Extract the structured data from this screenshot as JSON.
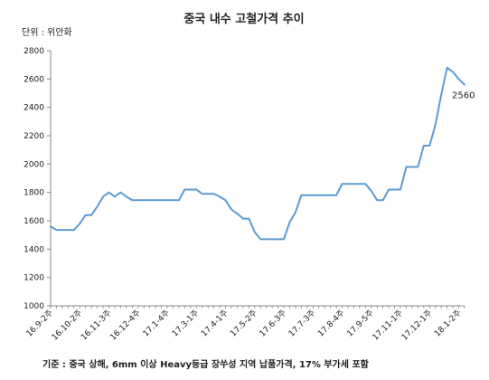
{
  "chart_data": {
    "type": "line",
    "title": "중국 내수 고철가격 추이",
    "unit_label": "단위 : 위안화",
    "footnote": "기준 : 중국 상해, 6mm 이상 Heavy등급 장쑤성 지역 납품가격, 17% 부가세 포함",
    "ylim": [
      1000,
      2800
    ],
    "yticks": [
      1000,
      1200,
      1400,
      1600,
      1800,
      2000,
      2200,
      2400,
      2600,
      2800
    ],
    "grid": false,
    "x_tick_labels": [
      "16.9-2주",
      "16.10-2주",
      "16.11-3주",
      "16.12-4주",
      "17.1-4주",
      "17.3-1주",
      "17.4-1주",
      "17.5-2주",
      "17.6-3주",
      "17.7-3주",
      "17.8-4주",
      "17.9-5주",
      "17.11-1주",
      "17.12-1주",
      "18.1-2주"
    ],
    "x_tick_indices": [
      0,
      5,
      10,
      15,
      20,
      25,
      30,
      35,
      40,
      45,
      50,
      55,
      60,
      65,
      70
    ],
    "series": [
      {
        "color": "#5b9bd5",
        "values": [
          1560,
          1535,
          1535,
          1535,
          1535,
          1580,
          1640,
          1640,
          1700,
          1770,
          1800,
          1770,
          1800,
          1770,
          1745,
          1745,
          1745,
          1745,
          1745,
          1745,
          1745,
          1745,
          1745,
          1820,
          1820,
          1820,
          1790,
          1790,
          1790,
          1770,
          1745,
          1680,
          1650,
          1615,
          1615,
          1520,
          1470,
          1470,
          1470,
          1470,
          1470,
          1590,
          1660,
          1780,
          1780,
          1780,
          1780,
          1780,
          1780,
          1780,
          1860,
          1860,
          1860,
          1860,
          1860,
          1810,
          1745,
          1745,
          1820,
          1820,
          1820,
          1980,
          1980,
          1980,
          2130,
          2130,
          2280,
          2490,
          2680,
          2650,
          2600,
          2560
        ],
        "end_label": "2560"
      }
    ]
  }
}
